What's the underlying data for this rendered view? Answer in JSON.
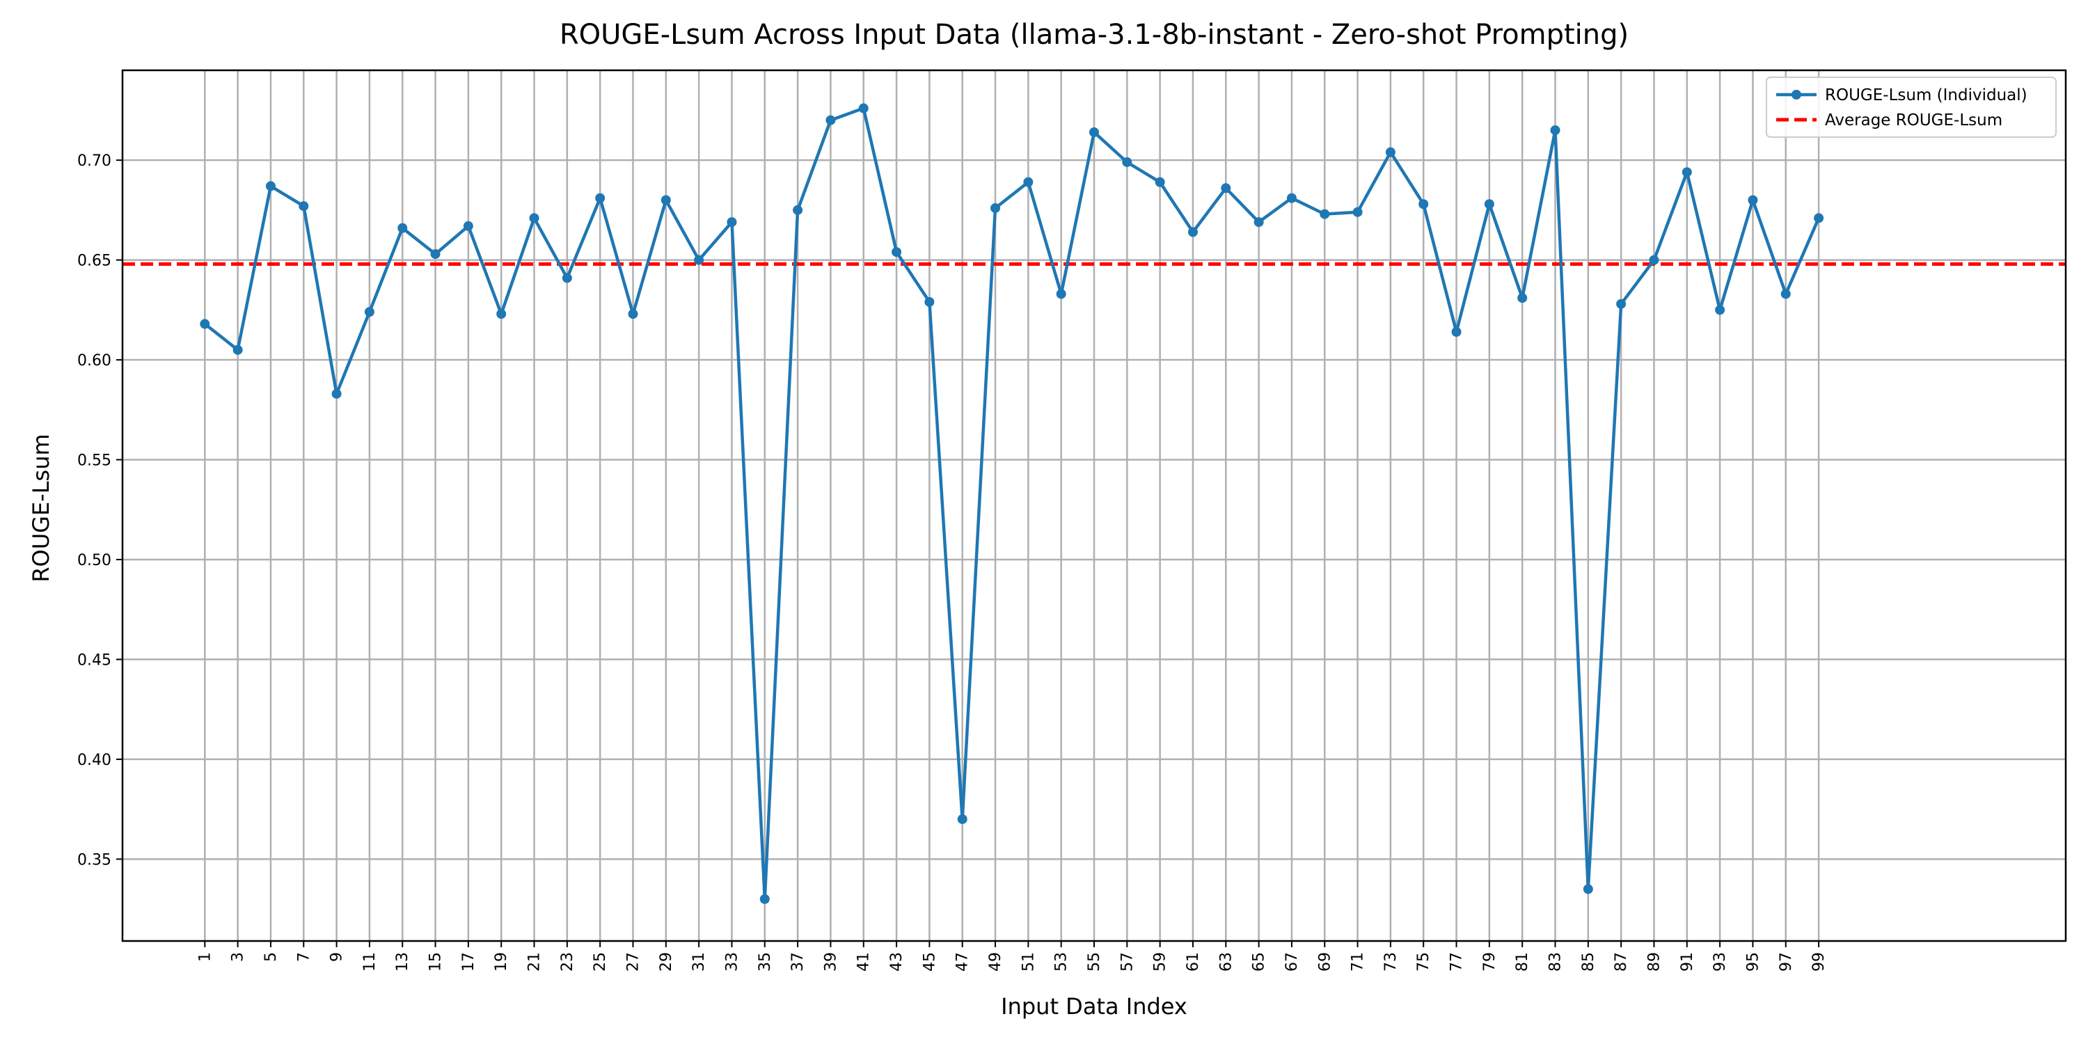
{
  "chart_data": {
    "type": "line",
    "title": "ROUGE-Lsum Across Input Data (llama-3.1-8b-instant - Zero-shot Prompting)",
    "xlabel": "Input Data Index",
    "ylabel": "ROUGE-Lsum",
    "x_ticks": [
      1,
      3,
      5,
      7,
      9,
      11,
      13,
      15,
      17,
      19,
      21,
      23,
      25,
      27,
      29,
      31,
      33,
      35,
      37,
      39,
      41,
      43,
      45,
      47,
      49,
      51,
      53,
      55,
      57,
      59,
      61,
      63,
      65,
      67,
      69,
      71,
      73,
      75,
      77,
      79,
      81,
      83,
      85,
      87,
      89,
      91,
      93,
      95,
      97,
      99
    ],
    "xlim": [
      -4,
      114
    ],
    "y_ticks": [
      0.35,
      0.4,
      0.45,
      0.5,
      0.55,
      0.6,
      0.65,
      0.7
    ],
    "ylim": [
      0.309,
      0.745
    ],
    "grid": true,
    "legend_placement": "top-right",
    "series": [
      {
        "name": "ROUGE-Lsum (Individual)",
        "color": "#1f77b4",
        "style": "solid-with-markers",
        "x": [
          1,
          3,
          5,
          7,
          9,
          11,
          13,
          15,
          17,
          19,
          21,
          23,
          25,
          27,
          29,
          31,
          33,
          35,
          37,
          39,
          41,
          43,
          45,
          47,
          49,
          51,
          53,
          55,
          57,
          59,
          61,
          63,
          65,
          67,
          69,
          71,
          73,
          75,
          77,
          79,
          81,
          83,
          85,
          87,
          89,
          91,
          93,
          95,
          97,
          99
        ],
        "values": [
          0.618,
          0.605,
          0.687,
          0.677,
          0.583,
          0.624,
          0.666,
          0.653,
          0.667,
          0.623,
          0.671,
          0.641,
          0.681,
          0.623,
          0.68,
          0.65,
          0.669,
          0.33,
          0.675,
          0.72,
          0.726,
          0.654,
          0.629,
          0.37,
          0.676,
          0.689,
          0.633,
          0.714,
          0.699,
          0.689,
          0.664,
          0.686,
          0.669,
          0.681,
          0.673,
          0.674,
          0.704,
          0.678,
          0.614,
          0.678,
          0.631,
          0.715,
          0.335,
          0.628,
          0.65,
          0.694,
          0.625,
          0.68,
          0.633,
          0.671
        ]
      },
      {
        "name": "Average ROUGE-Lsum",
        "color": "#ff0000",
        "style": "dashed",
        "value": 0.648
      }
    ]
  }
}
